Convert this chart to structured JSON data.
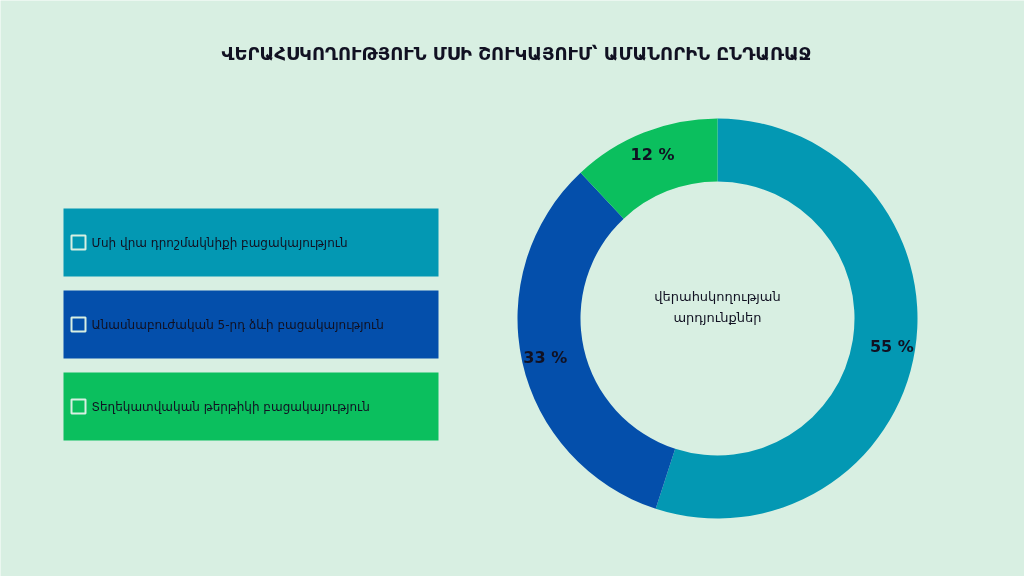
{
  "chart_data": {
    "type": "donut",
    "title": "ՎԵՐԱՀՍԿՈՂՈՒԹՅՈՒՆ ՄՍԻ ՇՈՒԿԱՅՈՒՄ՝ ԱՄԱՆՈՐԻՆ ԸՆԴԱՌԱՋ",
    "categories": [
      "Մսի վրա դրոշմակնիքի բացակայություն",
      "Անասնաբուժական 5-րդ ձևի բացակայություն",
      "Տեղեկատվական թերթիկի բացակայություն"
    ],
    "values": [
      55,
      33,
      12
    ],
    "colors": [
      "#0398b3",
      "#044fab",
      "#0bbf5e"
    ],
    "value_labels": [
      "55 %",
      "33 %",
      "12 %"
    ],
    "legend": "left",
    "annotations": [
      "վերահսկողության արդյունքներ"
    ]
  }
}
